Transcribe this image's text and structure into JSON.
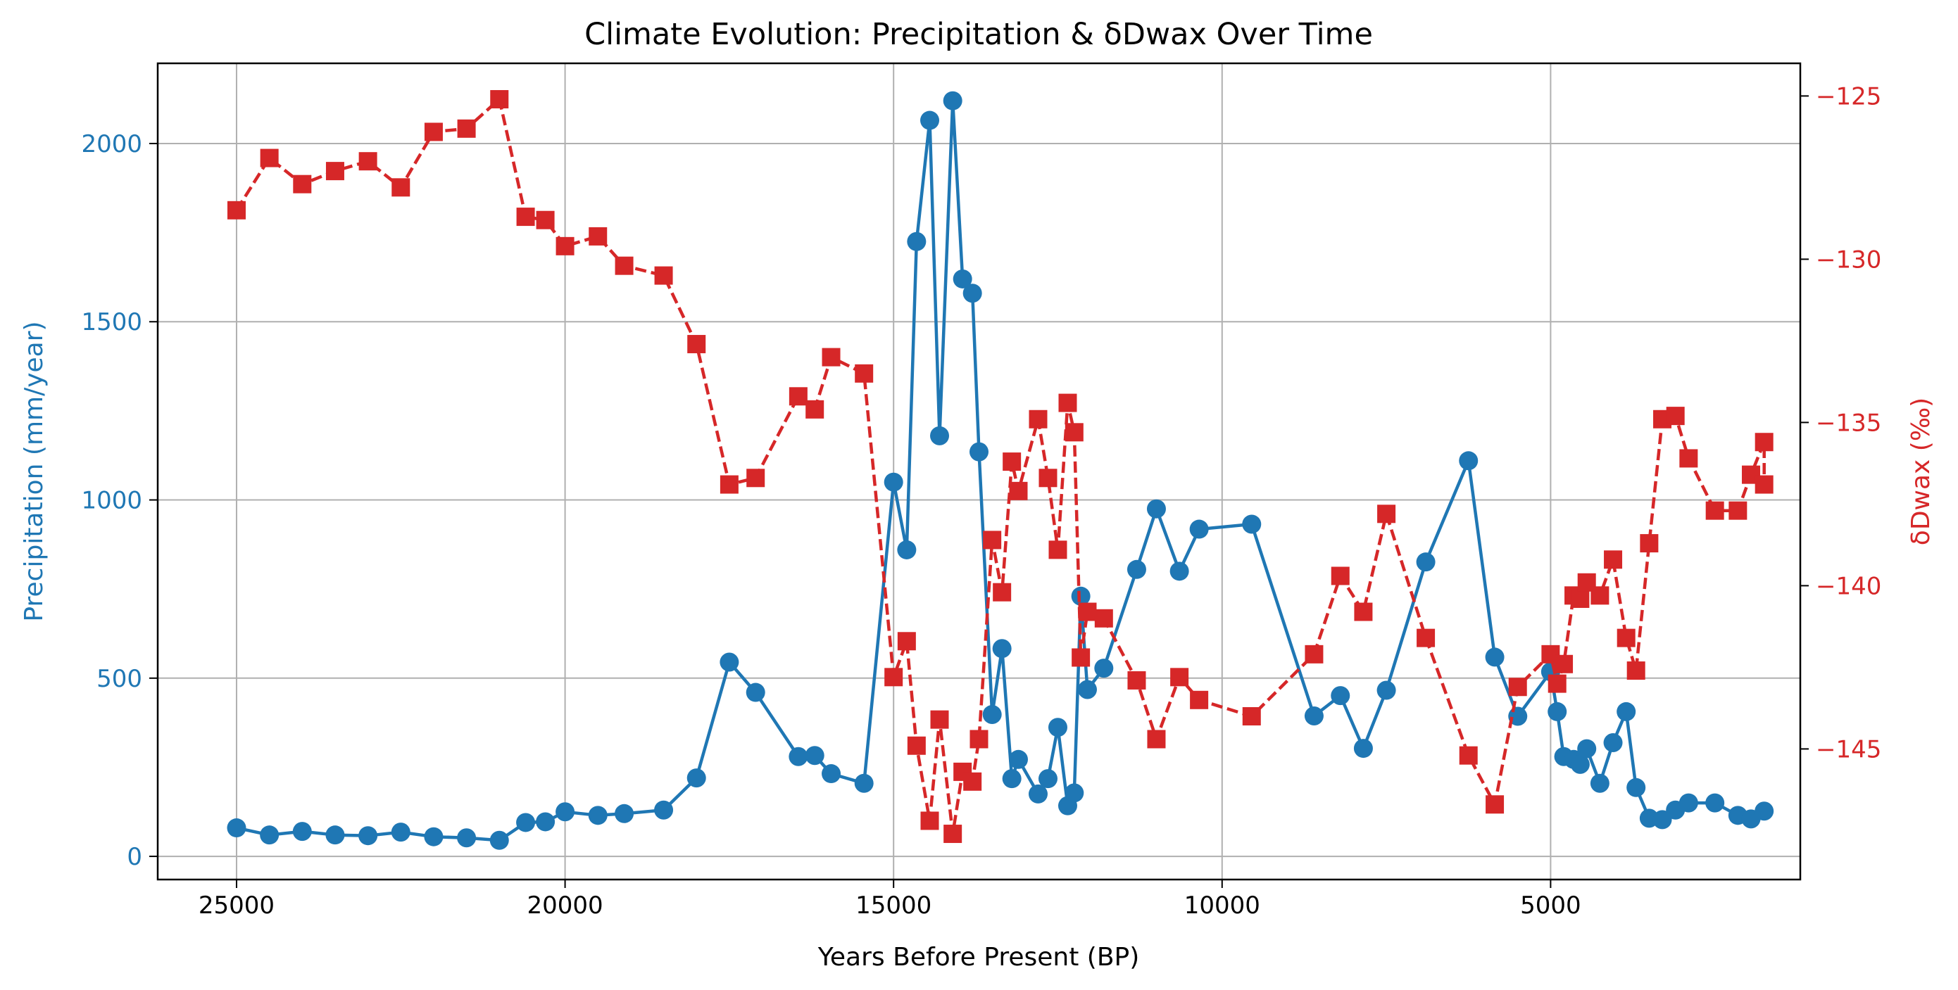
{
  "colors": {
    "precip": "#1f77b4",
    "dwax": "#d62728",
    "grid": "#b0b0b0",
    "axis": "#000000"
  },
  "chart_data": {
    "type": "line",
    "title": "Climate Evolution: Precipitation & δDwax Over Time",
    "xlabel": "Years Before Present (BP)",
    "ylabel_left": "Precipitation (mm/year)",
    "ylabel_right": "δDwax (‰)",
    "x_inverted": true,
    "xlim": [
      26200,
      1200
    ],
    "ylim_left": [
      -65,
      2225
    ],
    "ylim_right": [
      -149.0,
      -124.0
    ],
    "xticks": [
      25000,
      20000,
      15000,
      10000,
      5000
    ],
    "yticks_left": [
      0,
      500,
      1000,
      1500,
      2000
    ],
    "yticks_right": [
      -125,
      -130,
      -135,
      -140,
      -145
    ],
    "yticklabels_right": [
      "−125",
      "−130",
      "−135",
      "−140",
      "−145"
    ],
    "grid": true,
    "series": [
      {
        "axis": "left",
        "style": "solid",
        "marker": "circle",
        "points": [
          [
            25000,
            80
          ],
          [
            24500,
            60
          ],
          [
            24000,
            70
          ],
          [
            23500,
            60
          ],
          [
            23000,
            58
          ],
          [
            22500,
            68
          ],
          [
            22000,
            55
          ],
          [
            21500,
            52
          ],
          [
            21000,
            45
          ],
          [
            20600,
            95
          ],
          [
            20300,
            97
          ],
          [
            20000,
            125
          ],
          [
            19500,
            115
          ],
          [
            19100,
            120
          ],
          [
            18500,
            130
          ],
          [
            18000,
            220
          ],
          [
            17500,
            545
          ],
          [
            17100,
            460
          ],
          [
            16450,
            280
          ],
          [
            16200,
            283
          ],
          [
            15950,
            232
          ],
          [
            15450,
            205
          ],
          [
            15000,
            1050
          ],
          [
            14800,
            860
          ],
          [
            14650,
            1725
          ],
          [
            14450,
            2065
          ],
          [
            14300,
            1180
          ],
          [
            14100,
            2120
          ],
          [
            13950,
            1620
          ],
          [
            13800,
            1580
          ],
          [
            13700,
            1135
          ],
          [
            13500,
            398
          ],
          [
            13350,
            583
          ],
          [
            13200,
            218
          ],
          [
            13100,
            272
          ],
          [
            12800,
            175
          ],
          [
            12650,
            218
          ],
          [
            12500,
            362
          ],
          [
            12350,
            142
          ],
          [
            12250,
            178
          ],
          [
            12150,
            730
          ],
          [
            12050,
            468
          ],
          [
            11800,
            528
          ],
          [
            11300,
            805
          ],
          [
            11000,
            975
          ],
          [
            10650,
            800
          ],
          [
            10350,
            918
          ],
          [
            9550,
            932
          ],
          [
            8600,
            394
          ],
          [
            8200,
            451
          ],
          [
            7850,
            303
          ],
          [
            7500,
            466
          ],
          [
            6900,
            826
          ],
          [
            6250,
            1110
          ],
          [
            5850,
            559
          ],
          [
            5500,
            393
          ],
          [
            5000,
            518
          ],
          [
            4900,
            406
          ],
          [
            4800,
            280
          ],
          [
            4650,
            272
          ],
          [
            4550,
            258
          ],
          [
            4450,
            302
          ],
          [
            4250,
            205
          ],
          [
            4050,
            319
          ],
          [
            3850,
            406
          ],
          [
            3700,
            193
          ],
          [
            3500,
            107
          ],
          [
            3300,
            103
          ],
          [
            3100,
            130
          ],
          [
            2900,
            150
          ],
          [
            2500,
            150
          ],
          [
            2150,
            115
          ],
          [
            1950,
            105
          ],
          [
            1750,
            127
          ]
        ]
      },
      {
        "axis": "right",
        "style": "dashed",
        "marker": "square",
        "points": [
          [
            25000,
            -128.5
          ],
          [
            24500,
            -126.9
          ],
          [
            24000,
            -127.7
          ],
          [
            23500,
            -127.3
          ],
          [
            23000,
            -127.0
          ],
          [
            22500,
            -127.8
          ],
          [
            22000,
            -126.1
          ],
          [
            21500,
            -126.0
          ],
          [
            21000,
            -125.1
          ],
          [
            20600,
            -128.7
          ],
          [
            20300,
            -128.8
          ],
          [
            20000,
            -129.6
          ],
          [
            19500,
            -129.3
          ],
          [
            19100,
            -130.2
          ],
          [
            18500,
            -130.5
          ],
          [
            18000,
            -132.6
          ],
          [
            17500,
            -136.9
          ],
          [
            17100,
            -136.7
          ],
          [
            16450,
            -134.2
          ],
          [
            16200,
            -134.6
          ],
          [
            15950,
            -133.0
          ],
          [
            15450,
            -133.5
          ],
          [
            15000,
            -142.8
          ],
          [
            14800,
            -141.7
          ],
          [
            14650,
            -144.9
          ],
          [
            14450,
            -147.2
          ],
          [
            14300,
            -144.1
          ],
          [
            14100,
            -147.6
          ],
          [
            13950,
            -145.7
          ],
          [
            13800,
            -146.0
          ],
          [
            13700,
            -144.7
          ],
          [
            13500,
            -138.6
          ],
          [
            13350,
            -140.2
          ],
          [
            13200,
            -136.2
          ],
          [
            13100,
            -137.1
          ],
          [
            12800,
            -134.9
          ],
          [
            12650,
            -136.7
          ],
          [
            12500,
            -138.9
          ],
          [
            12350,
            -134.4
          ],
          [
            12250,
            -135.3
          ],
          [
            12150,
            -142.2
          ],
          [
            12050,
            -140.8
          ],
          [
            11800,
            -141.0
          ],
          [
            11300,
            -142.9
          ],
          [
            11000,
            -144.7
          ],
          [
            10650,
            -142.8
          ],
          [
            10350,
            -143.5
          ],
          [
            9550,
            -144.0
          ],
          [
            8600,
            -142.1
          ],
          [
            8200,
            -139.7
          ],
          [
            7850,
            -140.8
          ],
          [
            7500,
            -137.8
          ],
          [
            6900,
            -141.6
          ],
          [
            6250,
            -145.2
          ],
          [
            5850,
            -146.7
          ],
          [
            5500,
            -143.1
          ],
          [
            5000,
            -142.1
          ],
          [
            4900,
            -143.0
          ],
          [
            4800,
            -142.4
          ],
          [
            4650,
            -140.3
          ],
          [
            4550,
            -140.4
          ],
          [
            4450,
            -139.9
          ],
          [
            4250,
            -140.3
          ],
          [
            4050,
            -139.2
          ],
          [
            3850,
            -141.6
          ],
          [
            3700,
            -142.6
          ],
          [
            3500,
            -138.7
          ],
          [
            3300,
            -134.9
          ],
          [
            3100,
            -134.8
          ],
          [
            2900,
            -136.1
          ],
          [
            2500,
            -137.7
          ],
          [
            2150,
            -137.7
          ],
          [
            1950,
            -136.6
          ],
          [
            1750,
            -135.6
          ],
          [
            1750,
            -136.9
          ]
        ]
      }
    ]
  }
}
